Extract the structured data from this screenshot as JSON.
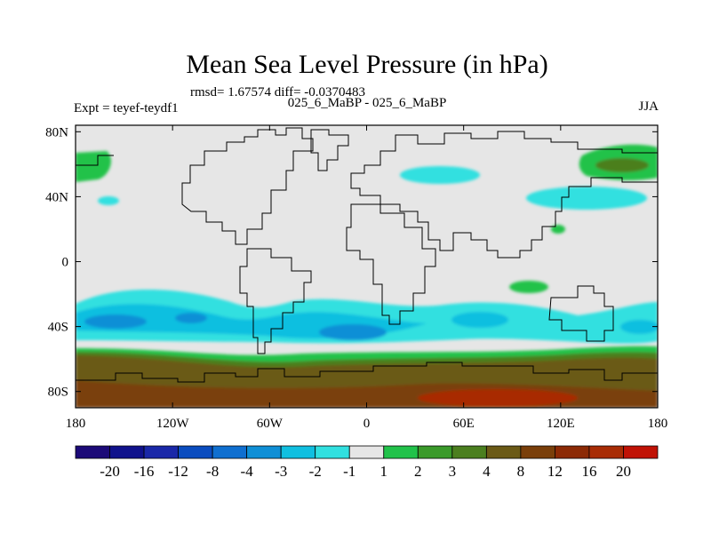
{
  "map": {
    "title": "Mean Sea Level Pressure (in hPa)",
    "stats": "rmsd= 1.67574 diff= -0.0370483",
    "left_label": "Expt = teyef-teydf1",
    "center_label": "025_6_MaBP - 025_6_MaBP",
    "right_label": "JJA",
    "lat_ticks": [
      {
        "label": "80N",
        "value": 80
      },
      {
        "label": "40N",
        "value": 40
      },
      {
        "label": "0",
        "value": 0
      },
      {
        "label": "40S",
        "value": -40
      },
      {
        "label": "80S",
        "value": -80
      }
    ],
    "lon_ticks": [
      {
        "label": "180",
        "value": -180
      },
      {
        "label": "120W",
        "value": -120
      },
      {
        "label": "60W",
        "value": -60
      },
      {
        "label": "0",
        "value": 0
      },
      {
        "label": "60E",
        "value": 60
      },
      {
        "label": "120E",
        "value": 120
      },
      {
        "label": "180",
        "value": 180
      }
    ],
    "lat_range": [
      -90,
      84
    ],
    "lon_range": [
      -180,
      180
    ]
  },
  "colorbar": {
    "colors": [
      "#1c0a78",
      "#10128c",
      "#1a28a8",
      "#0a4cbf",
      "#0f6fd0",
      "#0f8fd6",
      "#10bfe0",
      "#31e0e0",
      "#e6e6e6",
      "#21c24a",
      "#3a9a2a",
      "#4b7f1f",
      "#6b5a16",
      "#7a3f0a",
      "#8c2a05",
      "#a82c05",
      "#c01205"
    ],
    "labels": [
      "-20",
      "-16",
      "-12",
      "-8",
      "-4",
      "-3",
      "-2",
      "-1",
      "1",
      "2",
      "3",
      "4",
      "8",
      "12",
      "16",
      "20"
    ]
  }
}
